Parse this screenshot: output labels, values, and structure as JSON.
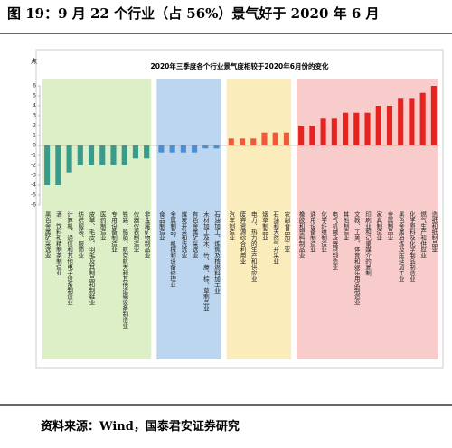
{
  "header": "图 19：9 月 22 个行业（占 56%）景气好于 2020 年 6 月",
  "source": "资料来源：Wind，国泰君安证券研究",
  "chart_data": {
    "type": "bar",
    "title": "2020年三季度各个行业景气度相较于2020年6月份的变化",
    "ylabel": "点",
    "ylim": [
      -6,
      6
    ],
    "yticks": [
      -6,
      -5,
      -4,
      -3,
      -2,
      -1,
      0,
      1,
      2,
      3,
      4,
      5,
      6
    ],
    "series": [
      {
        "color": "#3a9a8c",
        "background": "#dcefc6",
        "categories": [
          "黑色金属矿采选业",
          "酒、饮料和精制茶制造业",
          "计算机、通信和其他电子设备制造业",
          "纺织服装、服饰业",
          "皮革、毛皮、羽毛及其制品和制鞋业",
          "医药制造业",
          "专用设备制造业",
          "铁路、船舶、航空航天和其他运输设备制造业",
          "仪器仪表制造业",
          "非金属矿物制品业"
        ],
        "values": [
          -4,
          -4,
          -2.7,
          -2,
          -2,
          -2,
          -2,
          -2,
          -1.3,
          -1.3
        ]
      },
      {
        "color": "#4a8fd6",
        "background": "#bcd6ef",
        "categories": [
          "食品制造业",
          "金属制品、机械和设备修理业",
          "煤炭开采和洗选业",
          "有色金属矿采选业",
          "木材加工及木、竹、藤、棕、草制品业",
          "石油加工、炼焦及核燃料加工业"
        ],
        "values": [
          -0.7,
          -0.7,
          -0.7,
          -0.7,
          -0.3,
          -0.3
        ]
      },
      {
        "color": "#f05a3a",
        "background": "#fbecbc",
        "categories": [
          "汽车制造业",
          "废弃资源综合利用业",
          "电力、热力的生产和供应业",
          "烟草制品业",
          "石油和天然气开采业",
          "农副食品加工业"
        ],
        "values": [
          0.7,
          0.7,
          0.7,
          1.3,
          1.3,
          1.3
        ]
      },
      {
        "color": "#e52420",
        "background": "#f9cccc",
        "categories": [
          "橡胶和塑料制品业",
          "通用设备制造业",
          "化学纤维制造业",
          "电气机械及器材制造业",
          "其他制造业",
          "文教、工美、体育和娱乐用品制造业",
          "印刷业和记录媒介的复制",
          "家具制造业",
          "金属制品业",
          "黑色金属冶炼及压延加工业",
          "化学原料及化学制品制造业",
          "燃气生产和供应业",
          "造纸和纸制品业"
        ],
        "values": [
          2,
          2,
          2.7,
          2.7,
          3.3,
          3.3,
          3.3,
          4,
          4,
          4.7,
          4.7,
          5.3,
          6
        ]
      }
    ]
  }
}
